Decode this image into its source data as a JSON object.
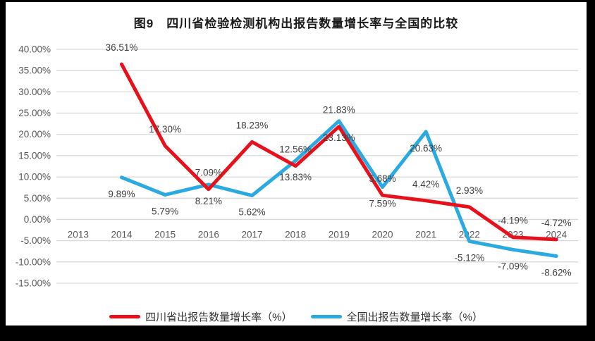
{
  "frame": {
    "border_color": "#000000",
    "chart_background": "#ffffff"
  },
  "chart_data": {
    "type": "line",
    "title": "图9　四川省检验检测机构出报告数量增长率与全国的比较",
    "categories": [
      "2013",
      "2014",
      "2015",
      "2016",
      "2017",
      "2018",
      "2019",
      "2020",
      "2021",
      "2022",
      "2023",
      "2024"
    ],
    "series": [
      {
        "name": "四川省出报告数量增长率（%）",
        "color": "#e8111b",
        "label_position": "above",
        "values": [
          null,
          36.51,
          17.3,
          7.09,
          18.23,
          12.56,
          21.83,
          5.68,
          4.42,
          2.93,
          -4.19,
          -4.72
        ]
      },
      {
        "name": "全国出报告数量增长率（%）",
        "color": "#2baae1",
        "label_position": "below",
        "values": [
          null,
          9.89,
          5.79,
          8.21,
          5.62,
          13.83,
          23.13,
          7.59,
          20.63,
          -5.12,
          -7.09,
          -8.62
        ]
      }
    ],
    "ylim": [
      -15,
      40
    ],
    "ytick_step": 5,
    "ytick_format": "percent_2dp",
    "data_label_format": "percent_2dp",
    "grid": true,
    "legend_position": "bottom",
    "styles": {
      "gridline_color": "#d9d9d9",
      "axis_label_color": "#595959",
      "data_label_color": "#3f3f3f",
      "title_color": "#1a1a1a"
    }
  }
}
